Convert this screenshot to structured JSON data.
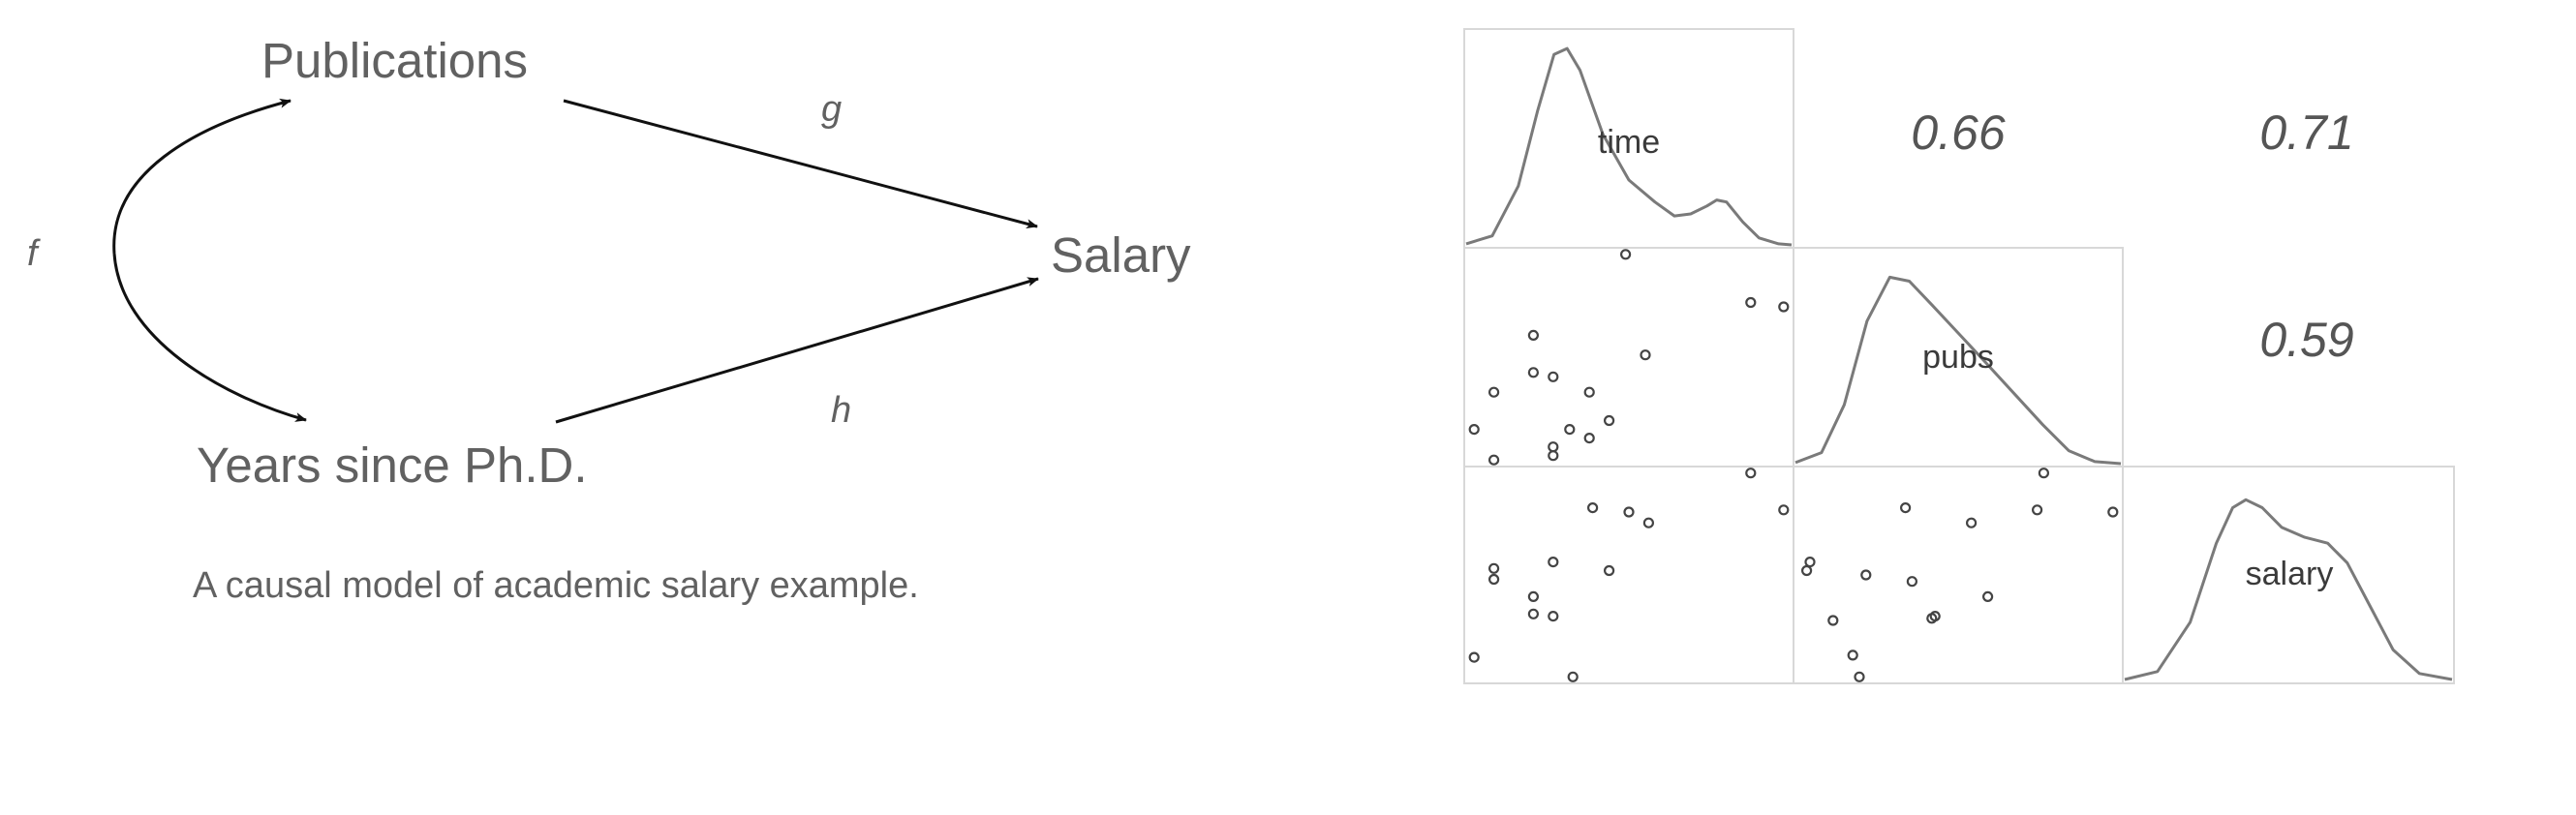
{
  "diagram": {
    "nodes": {
      "publications": "Publications",
      "salary": "Salary",
      "years": "Years since Ph.D."
    },
    "edges": {
      "f": "f",
      "g": "g",
      "h": "h"
    },
    "caption": "A causal model of academic salary example."
  },
  "pairs_plot": {
    "variables": [
      "time",
      "pubs",
      "salary"
    ],
    "correlations": {
      "time_pubs": "0.66",
      "time_salary": "0.71",
      "pubs_salary": "0.59"
    },
    "scatter_time_pubs": [
      [
        0.49,
        0.97
      ],
      [
        0.87,
        0.75
      ],
      [
        0.97,
        0.73
      ],
      [
        0.55,
        0.51
      ],
      [
        0.21,
        0.6
      ],
      [
        0.21,
        0.43
      ],
      [
        0.27,
        0.41
      ],
      [
        0.38,
        0.34
      ],
      [
        0.09,
        0.34
      ],
      [
        0.38,
        0.13
      ],
      [
        0.44,
        0.21
      ],
      [
        0.32,
        0.17
      ],
      [
        0.27,
        0.09
      ],
      [
        0.03,
        0.17
      ],
      [
        0.09,
        0.03
      ],
      [
        0.27,
        0.05
      ]
    ],
    "scatter_time_salary": [
      [
        0.87,
        0.97
      ],
      [
        0.39,
        0.81
      ],
      [
        0.5,
        0.79
      ],
      [
        0.56,
        0.74
      ],
      [
        0.97,
        0.8
      ],
      [
        0.27,
        0.56
      ],
      [
        0.44,
        0.52
      ],
      [
        0.09,
        0.53
      ],
      [
        0.09,
        0.48
      ],
      [
        0.21,
        0.4
      ],
      [
        0.21,
        0.32
      ],
      [
        0.27,
        0.31
      ],
      [
        0.03,
        0.12
      ],
      [
        0.33,
        0.03
      ]
    ],
    "scatter_pubs_salary": [
      [
        0.76,
        0.97
      ],
      [
        0.34,
        0.81
      ],
      [
        0.54,
        0.74
      ],
      [
        0.74,
        0.8
      ],
      [
        0.97,
        0.79
      ],
      [
        0.05,
        0.56
      ],
      [
        0.04,
        0.52
      ],
      [
        0.22,
        0.5
      ],
      [
        0.36,
        0.47
      ],
      [
        0.59,
        0.4
      ],
      [
        0.43,
        0.31
      ],
      [
        0.42,
        0.3
      ],
      [
        0.12,
        0.29
      ],
      [
        0.18,
        0.13
      ],
      [
        0.2,
        0.03
      ]
    ],
    "density_time": [
      [
        0,
        0.01
      ],
      [
        0.08,
        0.05
      ],
      [
        0.16,
        0.3
      ],
      [
        0.22,
        0.68
      ],
      [
        0.27,
        0.96
      ],
      [
        0.31,
        0.99
      ],
      [
        0.35,
        0.88
      ],
      [
        0.42,
        0.56
      ],
      [
        0.5,
        0.33
      ],
      [
        0.58,
        0.22
      ],
      [
        0.64,
        0.15
      ],
      [
        0.69,
        0.16
      ],
      [
        0.74,
        0.2
      ],
      [
        0.77,
        0.23
      ],
      [
        0.8,
        0.22
      ],
      [
        0.85,
        0.12
      ],
      [
        0.9,
        0.04
      ],
      [
        0.96,
        0.01
      ],
      [
        1,
        0.005
      ]
    ],
    "density_pubs": [
      [
        0,
        0.01
      ],
      [
        0.08,
        0.06
      ],
      [
        0.15,
        0.3
      ],
      [
        0.22,
        0.72
      ],
      [
        0.29,
        0.94
      ],
      [
        0.35,
        0.92
      ],
      [
        0.42,
        0.8
      ],
      [
        0.5,
        0.66
      ],
      [
        0.58,
        0.52
      ],
      [
        0.67,
        0.36
      ],
      [
        0.76,
        0.2
      ],
      [
        0.84,
        0.07
      ],
      [
        0.92,
        0.015
      ],
      [
        1,
        0.005
      ]
    ],
    "density_salary": [
      [
        0,
        0.01
      ],
      [
        0.1,
        0.05
      ],
      [
        0.2,
        0.3
      ],
      [
        0.28,
        0.7
      ],
      [
        0.33,
        0.88
      ],
      [
        0.37,
        0.92
      ],
      [
        0.42,
        0.88
      ],
      [
        0.48,
        0.78
      ],
      [
        0.55,
        0.73
      ],
      [
        0.62,
        0.7
      ],
      [
        0.68,
        0.6
      ],
      [
        0.75,
        0.38
      ],
      [
        0.82,
        0.16
      ],
      [
        0.9,
        0.04
      ],
      [
        1,
        0.01
      ]
    ]
  }
}
